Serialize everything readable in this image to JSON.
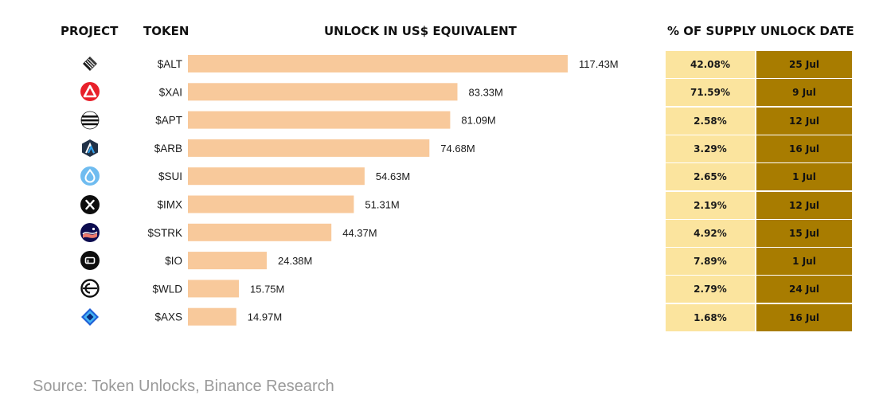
{
  "headers": {
    "project": "PROJECT",
    "token": "TOKEN",
    "unlock": "UNLOCK IN US$ EQUIVALENT",
    "supply": "% OF SUPPLY",
    "date": "UNLOCK DATE"
  },
  "chart_data": {
    "type": "bar",
    "orientation": "horizontal",
    "title": "UNLOCK IN US$ EQUIVALENT",
    "unit": "US$ millions",
    "categories": [
      "$ALT",
      "$XAI",
      "$APT",
      "$ARB",
      "$SUI",
      "$IMX",
      "$STRK",
      "$IO",
      "$WLD",
      "$AXS"
    ],
    "values": [
      117.43,
      83.33,
      81.09,
      74.68,
      54.63,
      51.31,
      44.37,
      24.38,
      15.75,
      14.97
    ],
    "value_labels": [
      "117.43M",
      "83.33M",
      "81.09M",
      "74.68M",
      "54.63M",
      "51.31M",
      "44.37M",
      "24.38M",
      "15.75M",
      "14.97M"
    ],
    "xlim": [
      0,
      117.43
    ],
    "bar_color": "#f8c99b",
    "grid": false
  },
  "rows": [
    {
      "icon": "altlayer-icon",
      "token": "$ALT",
      "supply": "42.08%",
      "date": "25 Jul"
    },
    {
      "icon": "xai-icon",
      "token": "$XAI",
      "supply": "71.59%",
      "date": "9 Jul"
    },
    {
      "icon": "aptos-icon",
      "token": "$APT",
      "supply": "2.58%",
      "date": "12 Jul"
    },
    {
      "icon": "arbitrum-icon",
      "token": "$ARB",
      "supply": "3.29%",
      "date": "16 Jul"
    },
    {
      "icon": "sui-icon",
      "token": "$SUI",
      "supply": "2.65%",
      "date": "1 Jul"
    },
    {
      "icon": "immutable-x-icon",
      "token": "$IMX",
      "supply": "2.19%",
      "date": "12 Jul"
    },
    {
      "icon": "starknet-icon",
      "token": "$STRK",
      "supply": "4.92%",
      "date": "15 Jul"
    },
    {
      "icon": "io-net-icon",
      "token": "$IO",
      "supply": "7.89%",
      "date": "1 Jul"
    },
    {
      "icon": "worldcoin-icon",
      "token": "$WLD",
      "supply": "2.79%",
      "date": "24 Jul"
    },
    {
      "icon": "axie-infinity-icon",
      "token": "$AXS",
      "supply": "1.68%",
      "date": "16 Jul"
    }
  ],
  "colors": {
    "bar": "#f8c99b",
    "supply_bg": "#fbe49e",
    "date_bg": "#a87c00",
    "source_text": "#9a9a9a"
  },
  "source": "Source: Token Unlocks, Binance Research"
}
